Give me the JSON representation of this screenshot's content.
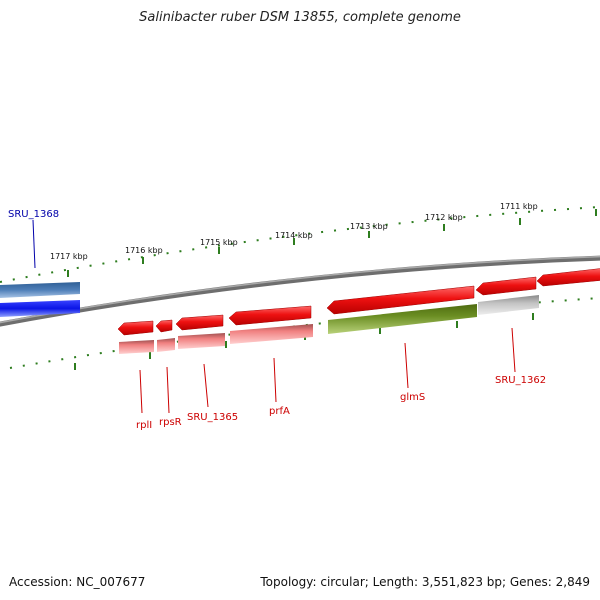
{
  "title": "Salinibacter ruber DSM 13855, complete genome",
  "footer": {
    "accession": "Accession: NC_007677",
    "stats": "Topology: circular; Length: 3,551,823 bp; Genes: 2,849"
  },
  "colors": {
    "backbone": "#7a7a7a",
    "tick": "#2e7d1f",
    "gene_red": "#ee1111",
    "gene_pink": "#f08080",
    "gene_green": "#6b8e23",
    "gene_grey": "#c2c2c2",
    "gene_blue": "#0a14e6",
    "gene_steel": "#4f7fb8",
    "label_red": "#cc0000",
    "label_blue": "#0000aa"
  },
  "kbp_ticks": [
    {
      "label": "1717 kbp"
    },
    {
      "label": "1716 kbp"
    },
    {
      "label": "1715 kbp"
    },
    {
      "label": "1714 kbp"
    },
    {
      "label": "1713 kbp"
    },
    {
      "label": "1712 kbp"
    },
    {
      "label": "1711 kbp"
    }
  ],
  "gene_labels": [
    {
      "name": "SRU_1368",
      "color": "blue"
    },
    {
      "name": "rplI",
      "color": "red"
    },
    {
      "name": "rpsR",
      "color": "red"
    },
    {
      "name": "SRU_1365",
      "color": "red"
    },
    {
      "name": "prfA",
      "color": "red"
    },
    {
      "name": "glmS",
      "color": "red"
    },
    {
      "name": "SRU_1362",
      "color": "red"
    }
  ]
}
